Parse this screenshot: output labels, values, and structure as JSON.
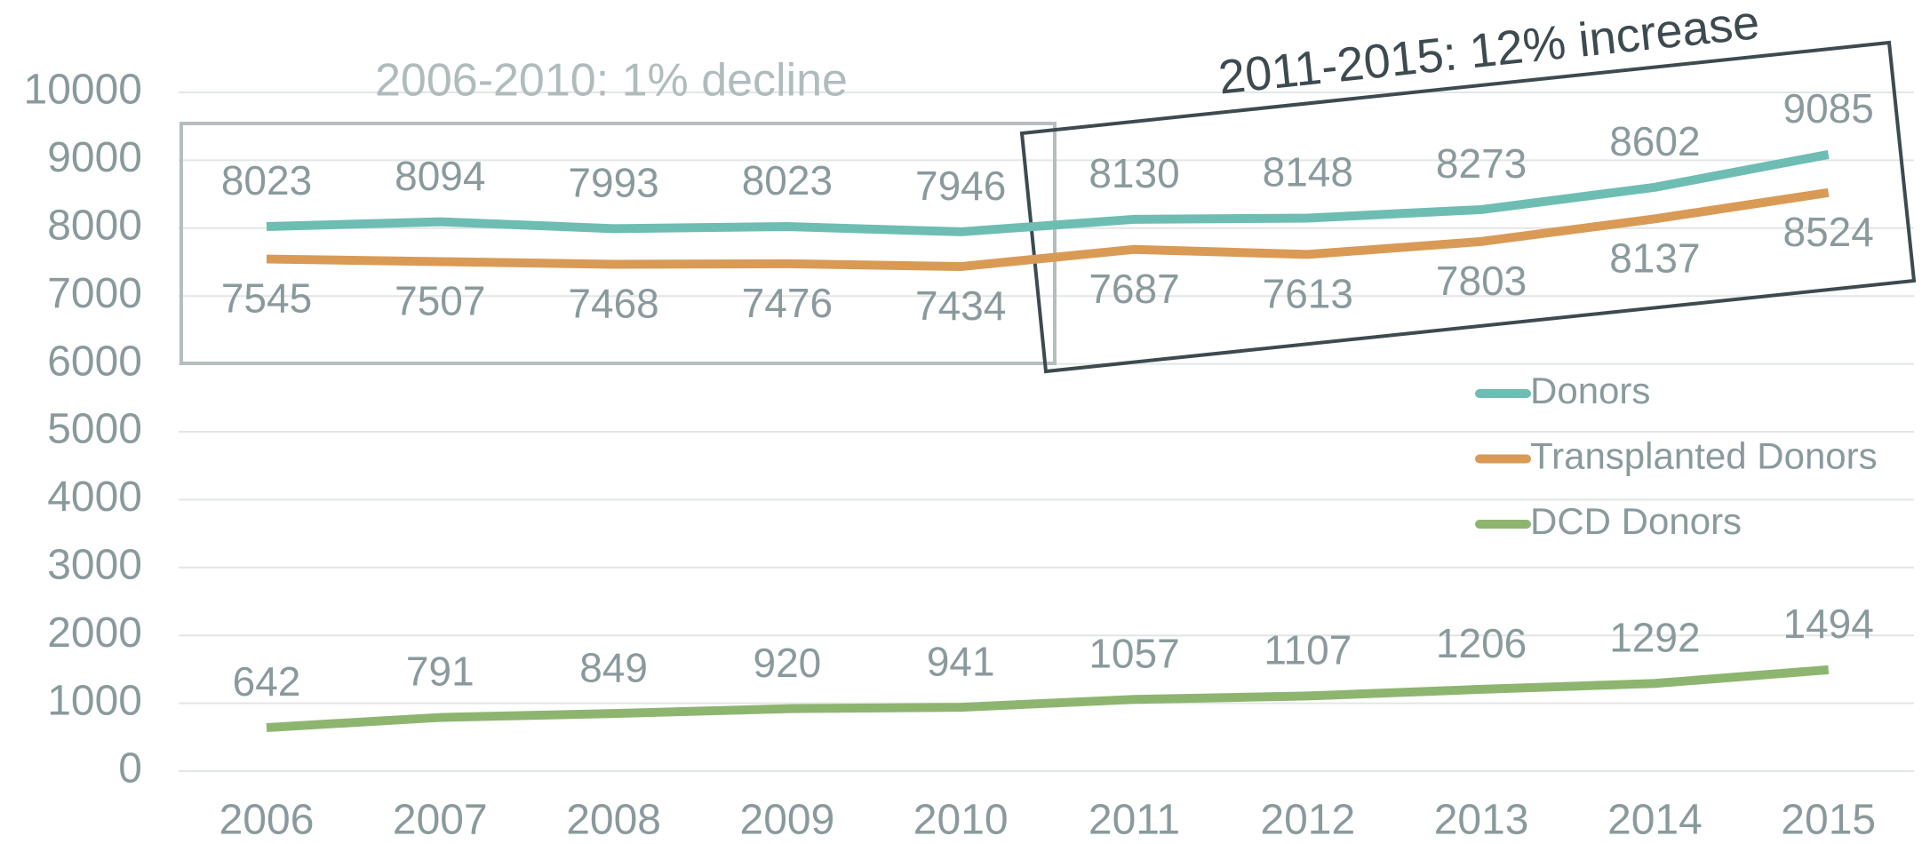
{
  "chart_data": {
    "type": "line",
    "categories": [
      "2006",
      "2007",
      "2008",
      "2009",
      "2010",
      "2011",
      "2012",
      "2013",
      "2014",
      "2015"
    ],
    "series": [
      {
        "name": "Donors",
        "color": "#6dbdb3",
        "values": [
          8023,
          8094,
          7993,
          8023,
          7946,
          8130,
          8148,
          8273,
          8602,
          9085
        ]
      },
      {
        "name": "Transplanted Donors",
        "color": "#d99a55",
        "values": [
          7545,
          7507,
          7468,
          7476,
          7434,
          7687,
          7613,
          7803,
          8137,
          8524
        ]
      },
      {
        "name": "DCD Donors",
        "color": "#8db56f",
        "values": [
          642,
          791,
          849,
          920,
          941,
          1057,
          1107,
          1206,
          1292,
          1494
        ]
      }
    ],
    "ylim": [
      0,
      10000
    ],
    "yticks": [
      0,
      1000,
      2000,
      3000,
      4000,
      5000,
      6000,
      7000,
      8000,
      9000,
      10000
    ],
    "grid": true,
    "legend": "right",
    "annotations": [
      "2006-2010: 1% decline",
      "2011-2015: 12% increase"
    ]
  }
}
